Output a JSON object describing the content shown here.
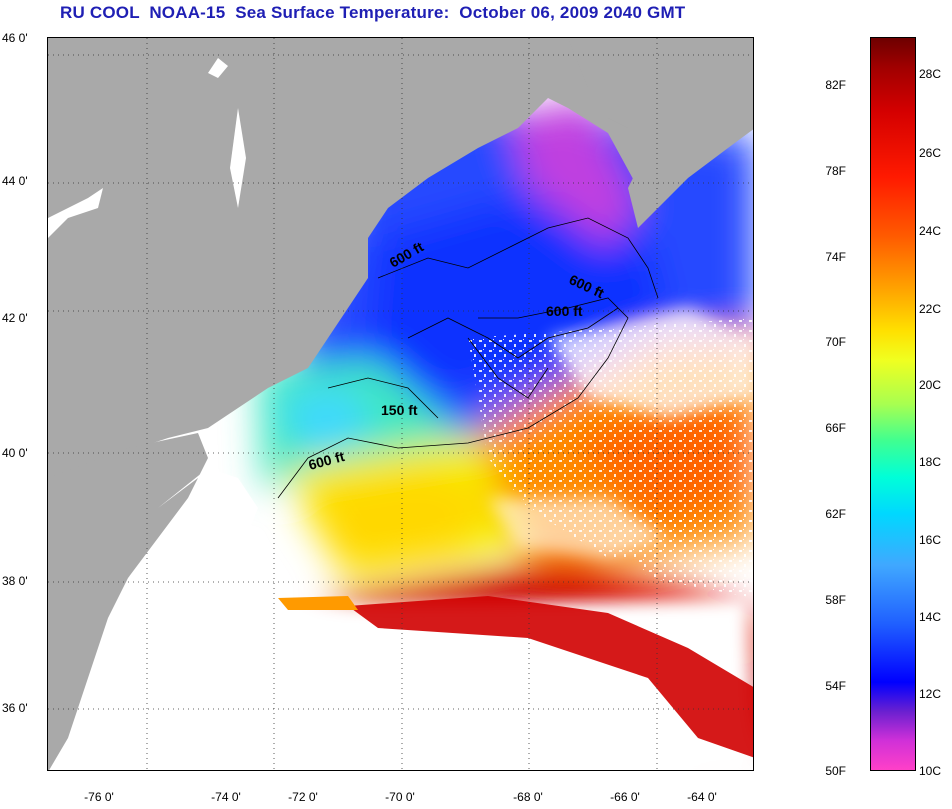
{
  "title": "RU COOL  NOAA-15  Sea Surface Temperature:  October 06, 2009 2040 GMT",
  "map": {
    "latitude_labels": [
      "46 0'",
      "44 0'",
      "42 0'",
      "40 0'",
      "38 0'",
      "36 0'"
    ],
    "longitude_labels": [
      "-76 0'",
      "-74 0'",
      "-72 0'",
      "-70 0'",
      "-68 0'",
      "-66 0'",
      "-64 0'"
    ],
    "contour_labels": [
      "600 ft",
      "600 ft",
      "600 ft",
      "150 ft",
      "600 ft"
    ],
    "grid": "dotted",
    "colors": {
      "land": "#a9a9a9",
      "cloud": "#ffffff",
      "cold": "#1a3cff",
      "warm": "#d80000"
    }
  },
  "colorbar": {
    "fahrenheit_labels": [
      "82F",
      "78F",
      "74F",
      "70F",
      "66F",
      "62F",
      "58F",
      "54F",
      "50F"
    ],
    "celsius_labels": [
      "28C",
      "26C",
      "24C",
      "22C",
      "20C",
      "18C",
      "16C",
      "14C",
      "12C",
      "10C"
    ]
  }
}
